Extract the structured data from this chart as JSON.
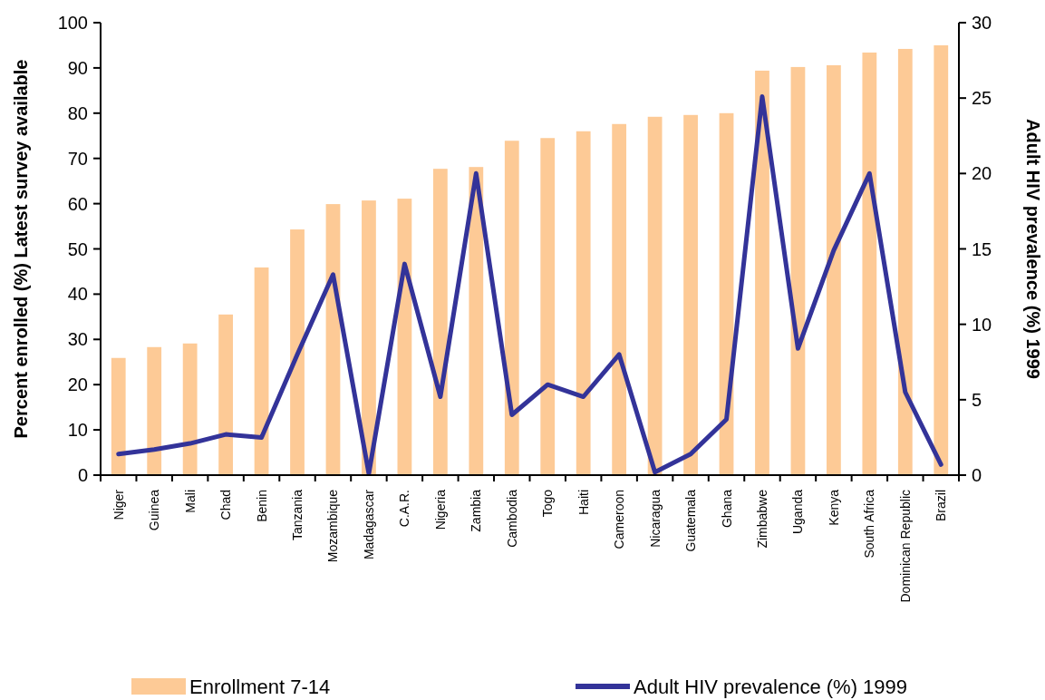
{
  "chart_data": {
    "type": "bar",
    "ylabel": "Percent enrolled (%) Latest survey available",
    "y2label": "Adult HIV prevalence (%) 1999",
    "categories": [
      "Niger",
      "Guinea",
      "Mali",
      "Chad",
      "Benin",
      "Tanzania",
      "Mozambique",
      "Madagascar",
      "C.A.R.",
      "Nigeria",
      "Zambia",
      "Cambodia",
      "Togo",
      "Haiti",
      "Cameroon",
      "Nicaragua",
      "Guatemala",
      "Ghana",
      "Zimbabwe",
      "Uganda",
      "Kenya",
      "South Africa",
      "Dominican Republic",
      "Brazil"
    ],
    "series": [
      {
        "name": "Enrollment 7-14",
        "color": "#fdca96",
        "values": [
          25.9,
          28.3,
          29.1,
          35.5,
          45.9,
          54.3,
          59.9,
          60.7,
          61.1,
          67.7,
          68.1,
          73.9,
          74.5,
          76,
          77.6,
          79.2,
          79.6,
          80,
          89.4,
          90.2,
          90.6,
          93.4,
          94.2,
          95
        ]
      },
      {
        "name": "Adult HIV prevalence (%) 1999",
        "type": "line",
        "axis": "y2",
        "color": "#333399",
        "values": [
          1.4,
          1.7,
          2.1,
          2.7,
          2.5,
          8,
          13.3,
          0.1,
          14,
          5.2,
          20,
          4,
          6,
          5.2,
          8,
          0.2,
          1.4,
          3.7,
          25.1,
          8.4,
          14.9,
          20,
          5.5,
          0.7
        ]
      }
    ],
    "ylim": [
      0,
      100
    ],
    "yticks": [
      0,
      10,
      20,
      30,
      40,
      50,
      60,
      70,
      80,
      90,
      100
    ],
    "y2lim": [
      0,
      30
    ],
    "y2ticks": [
      0,
      5,
      10,
      15,
      20,
      25,
      30
    ],
    "grid": false,
    "legend": "bottom",
    "line_style": "solid"
  }
}
